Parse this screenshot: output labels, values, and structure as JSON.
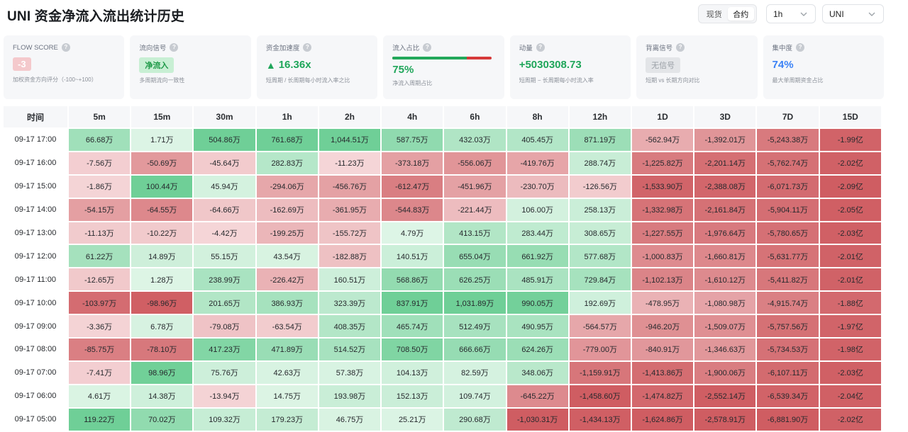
{
  "header": {
    "title": "UNI 资金净流入流出统计历史",
    "market_toggle": {
      "options": [
        "现货",
        "合约"
      ],
      "selected": "合约"
    },
    "interval_select": {
      "value": "1h"
    },
    "symbol_select": {
      "value": "UNI"
    }
  },
  "cards": [
    {
      "key": "flow",
      "label": "FLOW SCORE",
      "value": "-3",
      "sub": "加权资金方向评分（-100~+100）"
    },
    {
      "key": "signal",
      "label": "流向信号",
      "value": "净流入",
      "sub": "多周期流向一致性"
    },
    {
      "key": "accel",
      "label": "资金加速度",
      "value": "16.36x",
      "sub": "短周期 / 长周期每小时流入率之比"
    },
    {
      "key": "inflow",
      "label": "流入占比",
      "value": "75%",
      "sub": "净流入周期占比",
      "ratio": 0.75
    },
    {
      "key": "momentum",
      "label": "动量",
      "value": "+5030308.73",
      "sub": "短周期 − 长周期每小时流入率"
    },
    {
      "key": "divergence",
      "label": "背离信号",
      "value": "无信号",
      "sub": "短期 vs 长期方向对比"
    },
    {
      "key": "concentration",
      "label": "集中度",
      "value": "74%",
      "sub": "最大单周期资金占比"
    }
  ],
  "colors": {
    "pos_light": "#def5e6",
    "pos_dark": "#6fcf97",
    "neg_light": "#f5d6d8",
    "neg_dark": "#cf5d62"
  },
  "table": {
    "columns": [
      "时间",
      "5m",
      "15m",
      "30m",
      "1h",
      "2h",
      "4h",
      "6h",
      "8h",
      "12h",
      "1D",
      "3D",
      "7D",
      "15D"
    ],
    "rows": [
      {
        "time": "09-17 17:00",
        "cells": [
          "66.68万",
          "1.71万",
          "504.86万",
          "761.68万",
          "1,044.51万",
          "587.75万",
          "432.03万",
          "405.45万",
          "871.19万",
          "-562.94万",
          "-1,392.01万",
          "-5,243.38万",
          "-1.99亿"
        ]
      },
      {
        "time": "09-17 16:00",
        "cells": [
          "-7.56万",
          "-50.69万",
          "-45.64万",
          "282.83万",
          "-11.23万",
          "-373.18万",
          "-556.06万",
          "-419.76万",
          "288.74万",
          "-1,225.82万",
          "-2,201.14万",
          "-5,762.74万",
          "-2.02亿"
        ]
      },
      {
        "time": "09-17 15:00",
        "cells": [
          "-1.86万",
          "100.44万",
          "45.94万",
          "-294.06万",
          "-456.76万",
          "-612.47万",
          "-451.96万",
          "-230.70万",
          "-126.56万",
          "-1,533.90万",
          "-2,388.08万",
          "-6,071.73万",
          "-2.09亿"
        ]
      },
      {
        "time": "09-17 14:00",
        "cells": [
          "-54.15万",
          "-64.55万",
          "-64.66万",
          "-162.69万",
          "-361.95万",
          "-544.83万",
          "-221.44万",
          "106.00万",
          "258.13万",
          "-1,332.98万",
          "-2,161.84万",
          "-5,904.11万",
          "-2.05亿"
        ]
      },
      {
        "time": "09-17 13:00",
        "cells": [
          "-11.13万",
          "-10.22万",
          "-4.42万",
          "-199.25万",
          "-155.72万",
          "4.79万",
          "413.15万",
          "283.44万",
          "308.65万",
          "-1,227.55万",
          "-1,976.64万",
          "-5,780.65万",
          "-2.03亿"
        ]
      },
      {
        "time": "09-17 12:00",
        "cells": [
          "61.22万",
          "14.89万",
          "55.15万",
          "43.54万",
          "-182.88万",
          "140.51万",
          "655.04万",
          "661.92万",
          "577.68万",
          "-1,000.83万",
          "-1,660.81万",
          "-5,631.77万",
          "-2.01亿"
        ]
      },
      {
        "time": "09-17 11:00",
        "cells": [
          "-12.65万",
          "1.28万",
          "238.99万",
          "-226.42万",
          "160.51万",
          "568.86万",
          "626.25万",
          "485.91万",
          "729.84万",
          "-1,102.13万",
          "-1,610.12万",
          "-5,411.82万",
          "-2.01亿"
        ]
      },
      {
        "time": "09-17 10:00",
        "cells": [
          "-103.97万",
          "-98.96万",
          "201.65万",
          "386.93万",
          "323.39万",
          "837.91万",
          "1,031.89万",
          "990.05万",
          "192.69万",
          "-478.95万",
          "-1,080.98万",
          "-4,915.74万",
          "-1.88亿"
        ]
      },
      {
        "time": "09-17 09:00",
        "cells": [
          "-3.36万",
          "6.78万",
          "-79.08万",
          "-63.54万",
          "408.35万",
          "465.74万",
          "512.49万",
          "490.95万",
          "-564.57万",
          "-946.20万",
          "-1,509.07万",
          "-5,757.56万",
          "-1.97亿"
        ]
      },
      {
        "time": "09-17 08:00",
        "cells": [
          "-85.75万",
          "-78.10万",
          "417.23万",
          "471.89万",
          "514.52万",
          "708.50万",
          "666.66万",
          "624.26万",
          "-779.00万",
          "-840.91万",
          "-1,346.63万",
          "-5,734.53万",
          "-1.98亿"
        ]
      },
      {
        "time": "09-17 07:00",
        "cells": [
          "-7.41万",
          "98.96万",
          "75.76万",
          "42.63万",
          "57.38万",
          "104.13万",
          "82.59万",
          "348.06万",
          "-1,159.91万",
          "-1,413.86万",
          "-1,900.06万",
          "-6,107.11万",
          "-2.03亿"
        ]
      },
      {
        "time": "09-17 06:00",
        "cells": [
          "4.61万",
          "14.38万",
          "-13.94万",
          "14.75万",
          "193.98万",
          "152.13万",
          "109.74万",
          "-645.22万",
          "-1,458.60万",
          "-1,474.82万",
          "-2,552.14万",
          "-6,539.34万",
          "-2.04亿"
        ]
      },
      {
        "time": "09-17 05:00",
        "cells": [
          "119.22万",
          "70.02万",
          "109.32万",
          "179.23万",
          "46.75万",
          "25.21万",
          "290.68万",
          "-1,030.31万",
          "-1,434.13万",
          "-1,624.86万",
          "-2,578.91万",
          "-6,881.90万",
          "-2.02亿"
        ]
      }
    ]
  }
}
